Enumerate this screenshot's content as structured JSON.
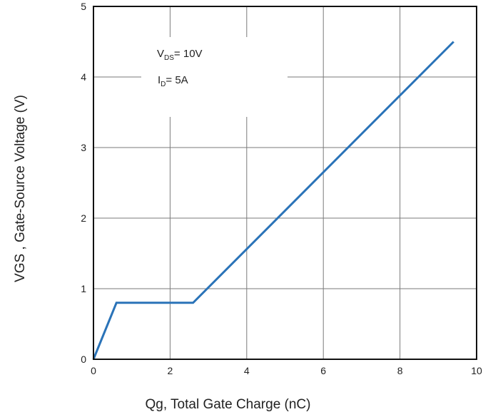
{
  "chart_data": {
    "type": "line",
    "title": "",
    "xlabel": "Qg, Total Gate Charge (nC)",
    "ylabel": "VGS , Gate-Source Voltage (V)",
    "xlim": [
      0,
      10
    ],
    "ylim": [
      0,
      5
    ],
    "xticks": [
      "0",
      "2",
      "4",
      "6",
      "8",
      "10"
    ],
    "yticks": [
      "0",
      "1",
      "2",
      "3",
      "4",
      "5"
    ],
    "grid": true,
    "series": [
      {
        "color": "#2a73b8",
        "x": [
          0,
          0.6,
          2.6,
          9.4
        ],
        "y": [
          0,
          0.8,
          0.8,
          4.5
        ]
      }
    ],
    "annotations": [
      {
        "main": "V",
        "sub": "DS",
        "rest": "= 10V"
      },
      {
        "main": "I",
        "sub": "D",
        "rest": "= 5A"
      }
    ]
  }
}
